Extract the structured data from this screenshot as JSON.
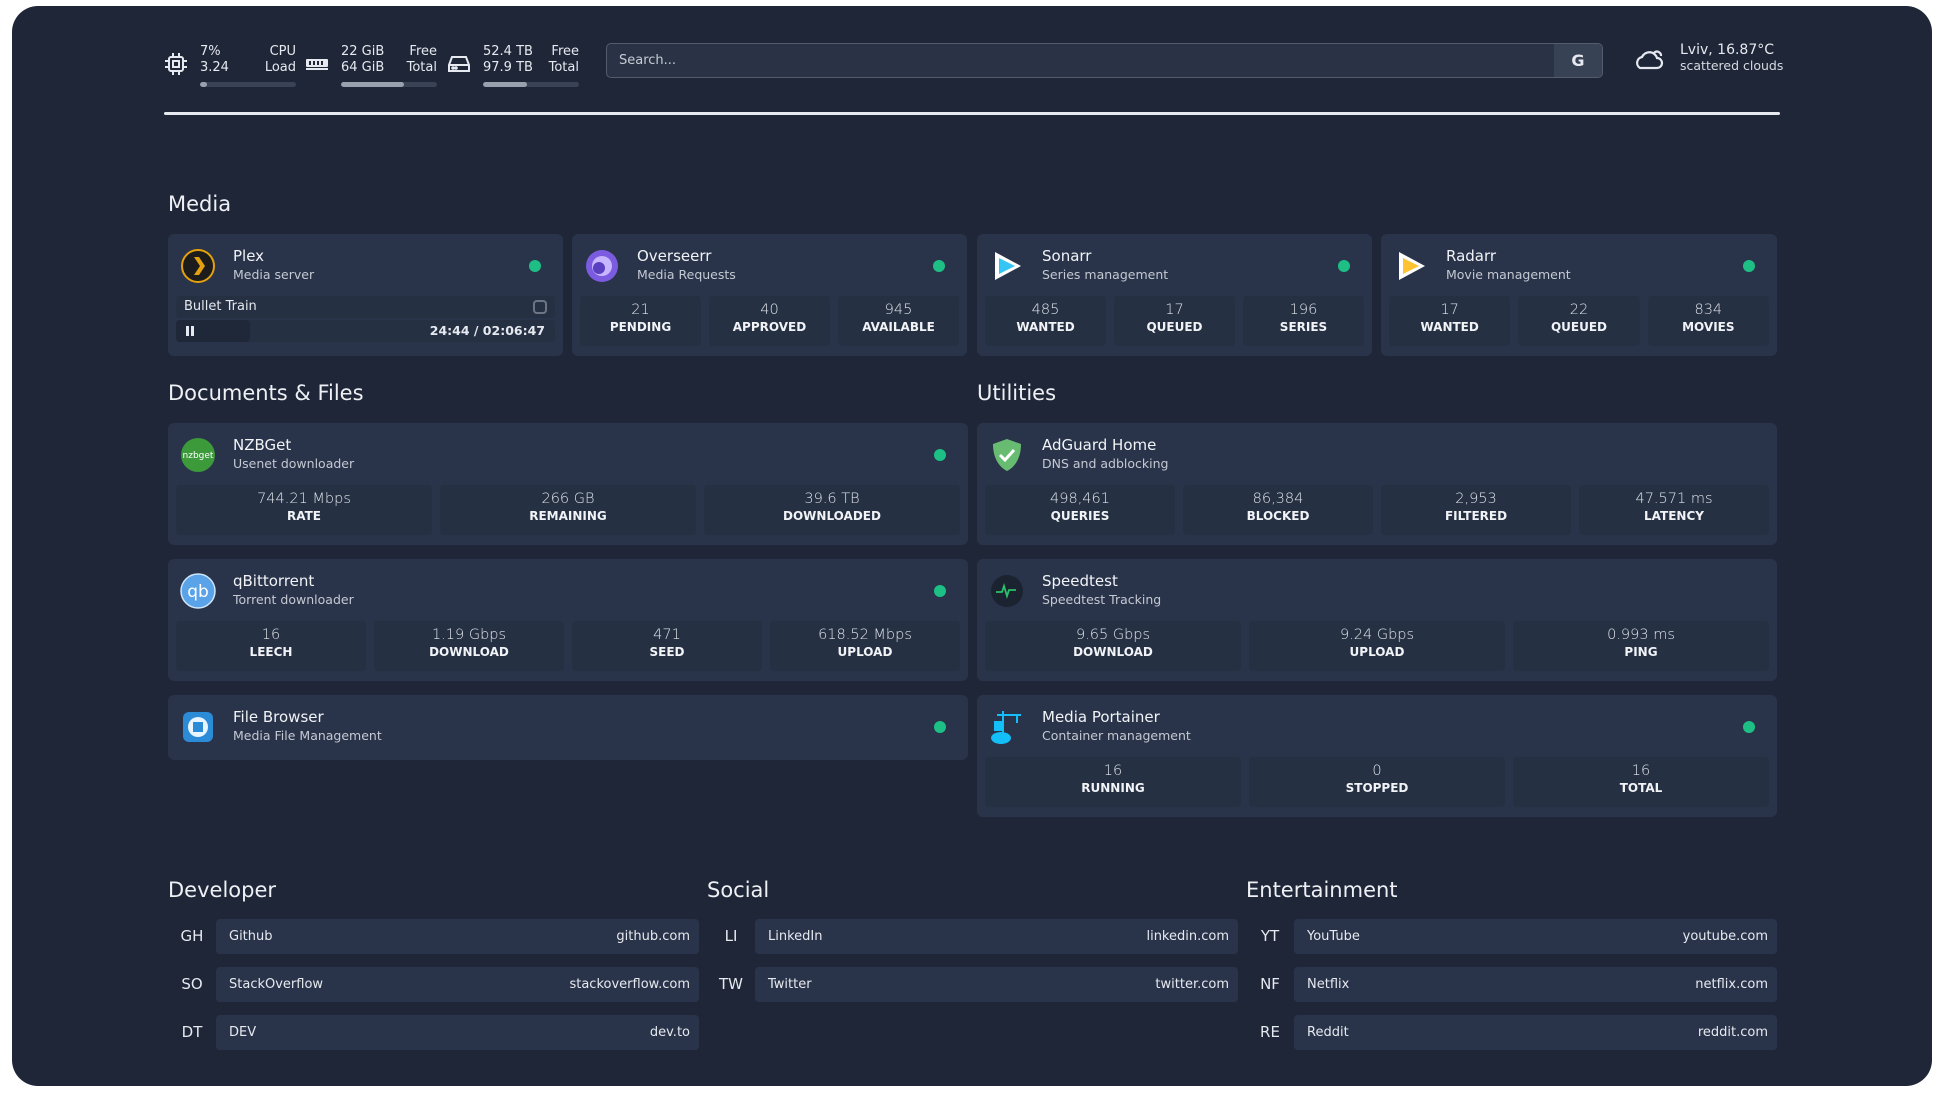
{
  "header": {
    "cpu": {
      "icon": "cpu-icon",
      "value1": "7%",
      "value2": "3.24",
      "label1": "CPU",
      "label2": "Load",
      "percent": 7
    },
    "memory": {
      "icon": "memory-icon",
      "value1": "22 GiB",
      "value2": "64 GiB",
      "label1": "Free",
      "label2": "Total",
      "percent": 66
    },
    "disk": {
      "icon": "disk-icon",
      "value1": "52.4 TB",
      "value2": "97.9 TB",
      "label1": "Free",
      "label2": "Total",
      "percent": 46
    },
    "search": {
      "placeholder": "Search...",
      "provider_label": "G"
    },
    "weather": {
      "icon": "cloud-icon",
      "location": "Lviv, 16.87°C",
      "condition": "scattered clouds"
    }
  },
  "colors": {
    "background": "#1f2638",
    "card": "#29344a",
    "status_online": "#1dbf85"
  },
  "sections": {
    "media": "Media",
    "documents": "Documents & Files",
    "utilities": "Utilities",
    "developer": "Developer",
    "social": "Social",
    "entertainment": "Entertainment"
  },
  "plex": {
    "name": "Plex",
    "desc": "Media server",
    "icon": "plex-icon",
    "now_playing": "Bullet Train",
    "time": "24:44 / 02:06:47",
    "progress_percent": 19.5
  },
  "services": [
    {
      "id": "overseerr",
      "name": "Overseerr",
      "desc": "Media Requests",
      "icon": "overseerr-icon",
      "stats": [
        {
          "value": "21",
          "label": "PENDING"
        },
        {
          "value": "40",
          "label": "APPROVED"
        },
        {
          "value": "945",
          "label": "AVAILABLE"
        }
      ]
    },
    {
      "id": "sonarr",
      "name": "Sonarr",
      "desc": "Series management",
      "icon": "sonarr-icon",
      "stats": [
        {
          "value": "485",
          "label": "WANTED"
        },
        {
          "value": "17",
          "label": "QUEUED"
        },
        {
          "value": "196",
          "label": "SERIES"
        }
      ]
    },
    {
      "id": "radarr",
      "name": "Radarr",
      "desc": "Movie management",
      "icon": "radarr-icon",
      "stats": [
        {
          "value": "17",
          "label": "WANTED"
        },
        {
          "value": "22",
          "label": "QUEUED"
        },
        {
          "value": "834",
          "label": "MOVIES"
        }
      ]
    },
    {
      "id": "nzbget",
      "name": "NZBGet",
      "desc": "Usenet downloader",
      "icon": "nzbget-icon",
      "stats": [
        {
          "value": "744.21 Mbps",
          "label": "RATE"
        },
        {
          "value": "266 GB",
          "label": "REMAINING"
        },
        {
          "value": "39.6 TB",
          "label": "DOWNLOADED"
        }
      ]
    },
    {
      "id": "qbittorrent",
      "name": "qBittorrent",
      "desc": "Torrent downloader",
      "icon": "qbittorrent-icon",
      "stats": [
        {
          "value": "16",
          "label": "LEECH"
        },
        {
          "value": "1.19 Gbps",
          "label": "DOWNLOAD"
        },
        {
          "value": "471",
          "label": "SEED"
        },
        {
          "value": "618.52 Mbps",
          "label": "UPLOAD"
        }
      ]
    },
    {
      "id": "filebrowser",
      "name": "File Browser",
      "desc": "Media File Management",
      "icon": "file-browser-icon",
      "stats": []
    },
    {
      "id": "adguard",
      "name": "AdGuard Home",
      "desc": "DNS and adblocking",
      "icon": "adguard-icon",
      "stats": [
        {
          "value": "498,461",
          "label": "QUERIES"
        },
        {
          "value": "86,384",
          "label": "BLOCKED"
        },
        {
          "value": "2,953",
          "label": "FILTERED"
        },
        {
          "value": "47.571 ms",
          "label": "LATENCY"
        }
      ]
    },
    {
      "id": "speedtest",
      "name": "Speedtest",
      "desc": "Speedtest Tracking",
      "icon": "speedtest-icon",
      "stats": [
        {
          "value": "9.65 Gbps",
          "label": "DOWNLOAD"
        },
        {
          "value": "9.24 Gbps",
          "label": "UPLOAD"
        },
        {
          "value": "0.993 ms",
          "label": "PING"
        }
      ]
    },
    {
      "id": "portainer",
      "name": "Media Portainer",
      "desc": "Container management",
      "icon": "portainer-icon",
      "stats": [
        {
          "value": "16",
          "label": "RUNNING"
        },
        {
          "value": "0",
          "label": "STOPPED"
        },
        {
          "value": "16",
          "label": "TOTAL"
        }
      ]
    }
  ],
  "bookmarks": [
    [
      {
        "abbr": "GH",
        "name": "Github",
        "url": "github.com"
      },
      {
        "abbr": "SO",
        "name": "StackOverflow",
        "url": "stackoverflow.com"
      },
      {
        "abbr": "DT",
        "name": "DEV",
        "url": "dev.to"
      }
    ],
    [
      {
        "abbr": "LI",
        "name": "LinkedIn",
        "url": "linkedin.com"
      },
      {
        "abbr": "TW",
        "name": "Twitter",
        "url": "twitter.com"
      }
    ],
    [
      {
        "abbr": "YT",
        "name": "YouTube",
        "url": "youtube.com"
      },
      {
        "abbr": "NF",
        "name": "Netflix",
        "url": "netflix.com"
      },
      {
        "abbr": "RE",
        "name": "Reddit",
        "url": "reddit.com"
      }
    ]
  ]
}
